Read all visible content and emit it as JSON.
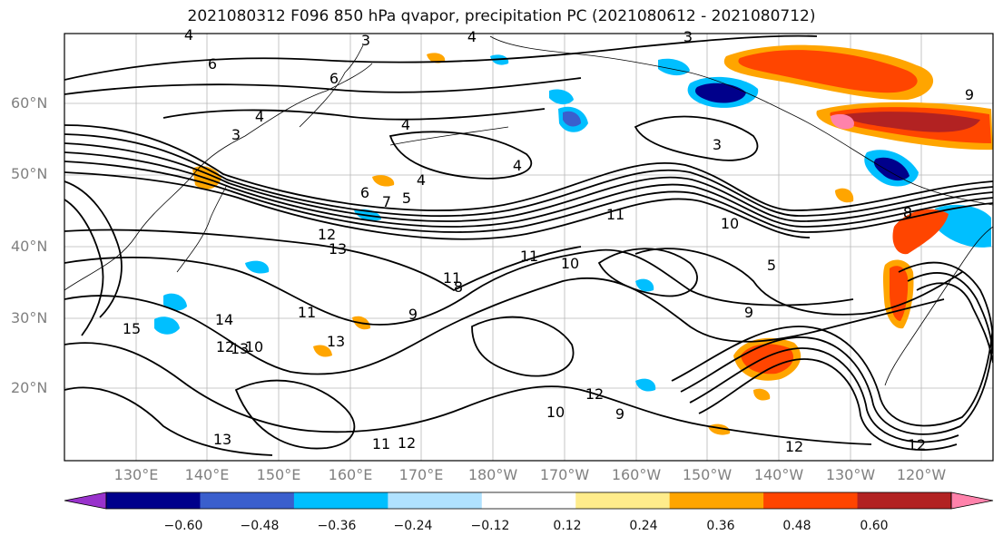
{
  "title": "2021080312 F096 850 hPa qvapor, precipitation PC (2021080612 - 2021080712)",
  "lat_labels": [
    "60°N",
    "50°N",
    "40°N",
    "30°N",
    "20°N"
  ],
  "lon_labels": [
    "130°E",
    "140°E",
    "150°E",
    "160°E",
    "170°E",
    "180°W",
    "170°W",
    "160°W",
    "150°W",
    "140°W",
    "130°W",
    "120°W"
  ],
  "contour_labels": [
    "4",
    "3",
    "4",
    "6",
    "4",
    "3",
    "4",
    "6",
    "4",
    "4",
    "6",
    "7",
    "5",
    "12",
    "13",
    "11",
    "10",
    "11",
    "11",
    "10",
    "9",
    "8",
    "5",
    "3",
    "12",
    "13",
    "11",
    "10",
    "12",
    "11",
    "12",
    "13",
    "3",
    "9",
    "8",
    "9",
    "15",
    "14",
    "13",
    "12",
    "10",
    "9",
    "12"
  ],
  "colorbar": {
    "ticks": [
      "−0.60",
      "−0.48",
      "−0.36",
      "−0.24",
      "−0.12",
      "0.12",
      "0.24",
      "0.36",
      "0.48",
      "0.60"
    ],
    "colors": [
      "#9932cc",
      "#00008b",
      "#3a5fcd",
      "#00bfff",
      "#b0e2ff",
      "#ffffff",
      "#ffec8b",
      "#ffa500",
      "#ff4500",
      "#b22222",
      "#ff82ab"
    ]
  }
}
